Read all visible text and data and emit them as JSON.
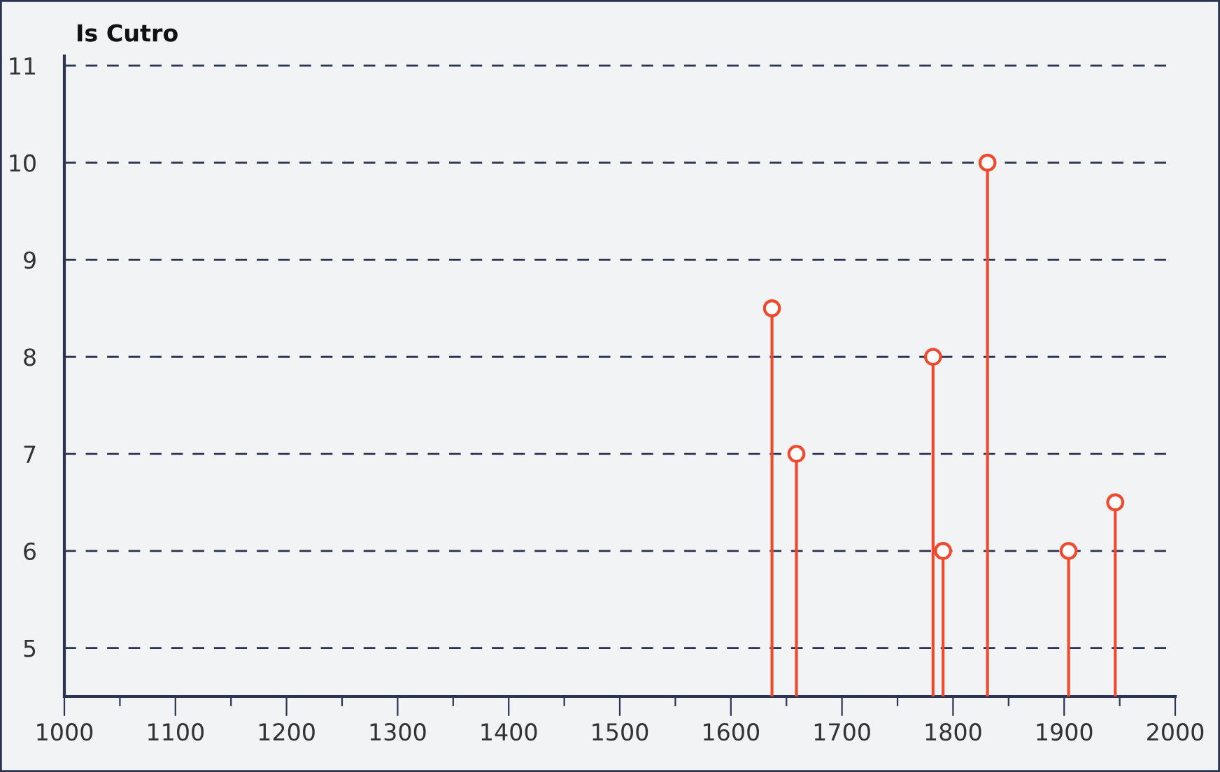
{
  "chart_data": {
    "type": "lollipop",
    "title": "Is Cutro",
    "x": [
      1637,
      1659,
      1782,
      1791,
      1831,
      1904,
      1946
    ],
    "values": [
      8.5,
      7,
      8,
      6,
      10,
      6,
      6.5
    ],
    "color": "#f04a2e",
    "marker": "circle",
    "grid": "y",
    "xlim": [
      1000,
      2000
    ],
    "xticks": [
      1000,
      {
        "value": 1050,
        "label": null
      },
      1100,
      {
        "value": 1150,
        "label": null
      },
      1200,
      {
        "value": 1250,
        "label": null
      },
      1300,
      {
        "value": 1350,
        "label": null
      },
      1400,
      {
        "value": 1450,
        "label": null
      },
      1500,
      {
        "value": 1550,
        "label": null
      },
      1600,
      {
        "value": 1650,
        "label": null
      },
      1700,
      {
        "value": 1750,
        "label": null
      },
      1800,
      {
        "value": 1850,
        "label": null
      },
      1900,
      {
        "value": 1950,
        "label": null
      },
      2000
    ],
    "ylim": [
      4.5,
      11.1
    ],
    "yticks": [
      5,
      6,
      7,
      8,
      9,
      10,
      11
    ]
  }
}
